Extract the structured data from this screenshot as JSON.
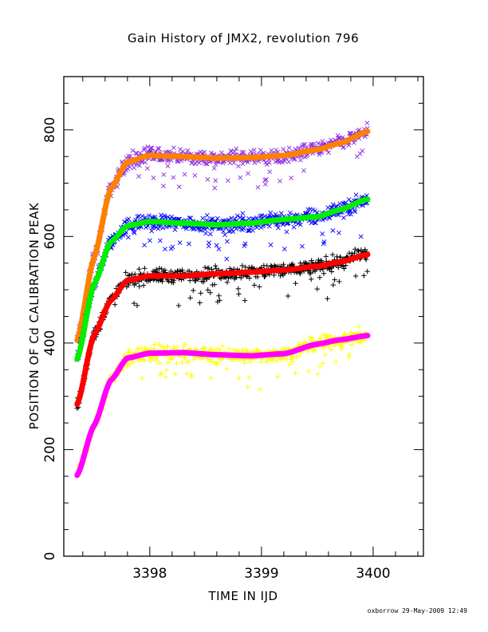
{
  "chart_data": {
    "type": "scatter",
    "title": "Gain History of JMX2, revolution 796",
    "xlabel": "TIME IN IJD",
    "ylabel": "POSITION OF Cd CALIBRATION PEAK",
    "xlim": [
      3397.23,
      3400.45
    ],
    "ylim": [
      0,
      900
    ],
    "x_ticks": [
      3398,
      3399,
      3400
    ],
    "y_ticks": [
      0,
      200,
      400,
      600,
      800
    ],
    "x_minor_step": 0.2,
    "y_minor_step": 50,
    "grid": false,
    "footer": "oxborrow 29-May-2009 12:49",
    "series": [
      {
        "color": "#8a2be2",
        "marker": "x",
        "fit_color": "#ff8000",
        "x": [
          3397.35,
          3397.5,
          3397.65,
          3397.8,
          3398.0,
          3398.3,
          3398.6,
          3398.9,
          3399.2,
          3399.5,
          3399.7,
          3399.95
        ],
        "y": [
          405,
          560,
          690,
          740,
          752,
          750,
          747,
          748,
          752,
          763,
          775,
          797
        ]
      },
      {
        "color": "#0000ff",
        "marker": "x",
        "fit_color": "#00ee00",
        "x": [
          3397.35,
          3397.5,
          3397.65,
          3397.8,
          3398.0,
          3398.3,
          3398.6,
          3398.9,
          3399.2,
          3399.5,
          3399.7,
          3399.95
        ],
        "y": [
          370,
          510,
          590,
          620,
          628,
          625,
          622,
          625,
          632,
          637,
          650,
          670
        ]
      },
      {
        "color": "#000000",
        "marker": "+",
        "fit_color": "#ff0000",
        "x": [
          3397.35,
          3397.5,
          3397.65,
          3397.8,
          3398.0,
          3398.3,
          3398.6,
          3398.9,
          3399.2,
          3399.5,
          3399.7,
          3399.95
        ],
        "y": [
          285,
          415,
          480,
          518,
          526,
          526,
          530,
          533,
          537,
          544,
          552,
          566
        ]
      },
      {
        "color": "#ffff00",
        "marker": "+",
        "fit_color": "#ff00ff",
        "x": [
          3397.35,
          3397.5,
          3397.65,
          3397.8,
          3398.0,
          3398.3,
          3398.6,
          3398.9,
          3399.2,
          3399.5,
          3399.7,
          3399.95
        ],
        "y": [
          152,
          245,
          330,
          372,
          381,
          382,
          378,
          376,
          380,
          398,
          406,
          414
        ]
      }
    ]
  }
}
